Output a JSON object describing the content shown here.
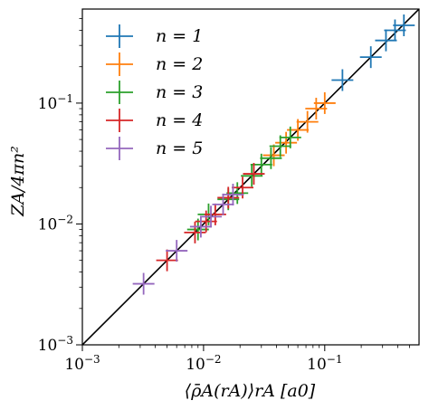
{
  "chart_data": {
    "type": "scatter",
    "title": "",
    "xlabel": "⟨ρ̄A(rA)⟩rA  [a0]",
    "ylabel": "ZA/4πn²",
    "xscale": "log",
    "yscale": "log",
    "xlim": [
      0.001,
      0.6
    ],
    "ylim": [
      0.001,
      0.6
    ],
    "xticks": [
      {
        "value": 0.001,
        "base": "10",
        "exp": "−3"
      },
      {
        "value": 0.01,
        "base": "10",
        "exp": "−2"
      },
      {
        "value": 0.1,
        "base": "10",
        "exp": "−1"
      }
    ],
    "yticks": [
      {
        "value": 0.001,
        "base": "10",
        "exp": "−3"
      },
      {
        "value": 0.01,
        "base": "10",
        "exp": "−2"
      },
      {
        "value": 0.1,
        "base": "10",
        "exp": "−1"
      }
    ],
    "grid": false,
    "legend_position": "upper-left",
    "reference_line": {
      "type": "y=x",
      "color": "#000000"
    },
    "marker": "errorbar-cross",
    "series": [
      {
        "name": "n = 1",
        "color": "#1f77b4",
        "points": [
          [
            0.14,
            0.155
          ],
          [
            0.24,
            0.24
          ],
          [
            0.32,
            0.33
          ],
          [
            0.38,
            0.4
          ],
          [
            0.45,
            0.44
          ]
        ]
      },
      {
        "name": "n = 2",
        "color": "#ff7f0e",
        "points": [
          [
            0.038,
            0.037
          ],
          [
            0.048,
            0.047
          ],
          [
            0.06,
            0.06
          ],
          [
            0.072,
            0.07
          ],
          [
            0.085,
            0.09
          ],
          [
            0.1,
            0.1
          ]
        ]
      },
      {
        "name": "n = 3",
        "color": "#2ca02c",
        "points": [
          [
            0.009,
            0.009
          ],
          [
            0.011,
            0.012
          ],
          [
            0.016,
            0.016
          ],
          [
            0.019,
            0.018
          ],
          [
            0.025,
            0.025
          ],
          [
            0.03,
            0.031
          ],
          [
            0.036,
            0.035
          ],
          [
            0.043,
            0.044
          ],
          [
            0.052,
            0.052
          ]
        ]
      },
      {
        "name": "n = 4",
        "color": "#d62728",
        "points": [
          [
            0.005,
            0.005
          ],
          [
            0.0085,
            0.0085
          ],
          [
            0.0105,
            0.0105
          ],
          [
            0.0125,
            0.012
          ],
          [
            0.016,
            0.0165
          ],
          [
            0.021,
            0.02
          ],
          [
            0.026,
            0.026
          ]
        ]
      },
      {
        "name": "n = 5",
        "color": "#9467bd",
        "points": [
          [
            0.0032,
            0.0032
          ],
          [
            0.006,
            0.006
          ],
          [
            0.0095,
            0.0095
          ],
          [
            0.0115,
            0.0115
          ],
          [
            0.0145,
            0.0145
          ],
          [
            0.0175,
            0.0175
          ]
        ]
      }
    ]
  }
}
